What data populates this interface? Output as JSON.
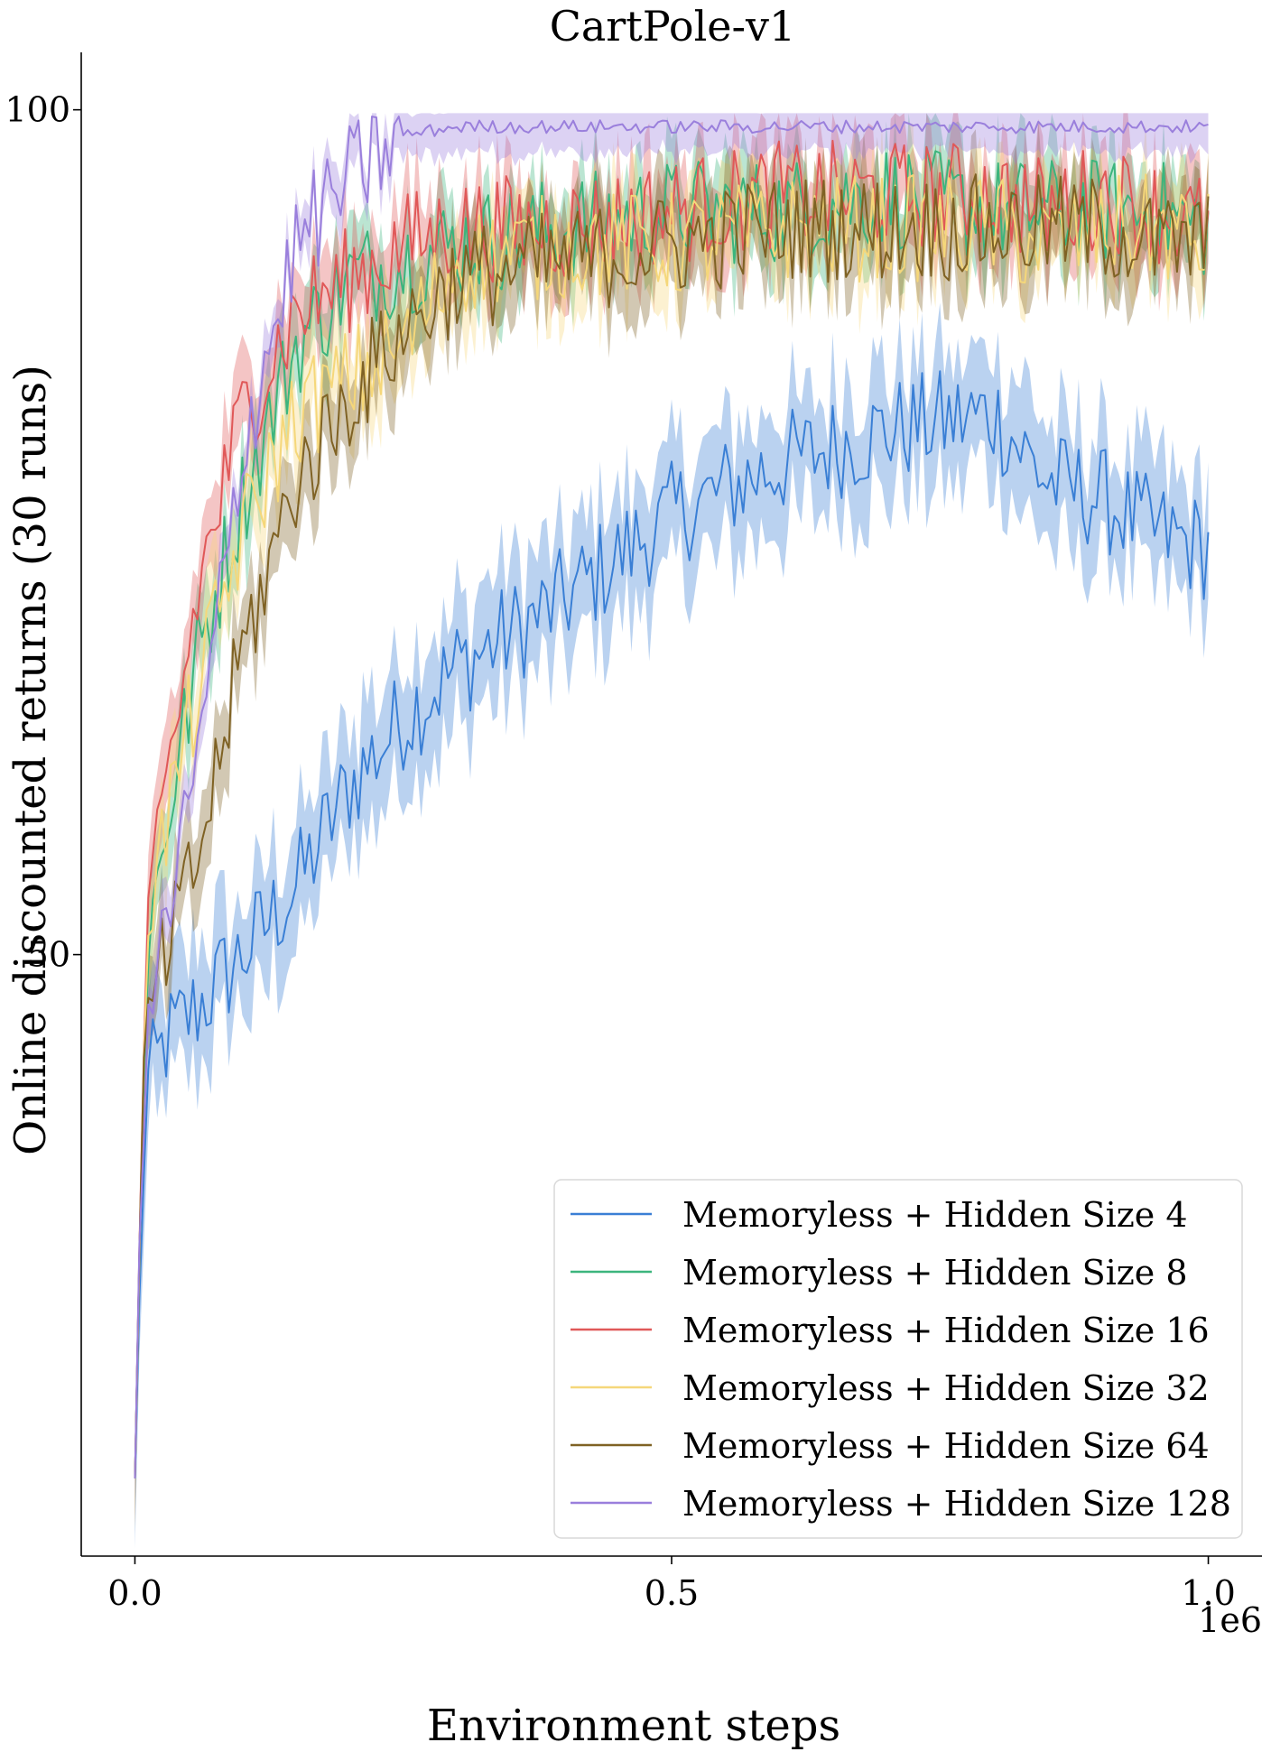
{
  "chart_data": {
    "type": "line",
    "title": "CartPole-v1",
    "xlabel": "Environment steps",
    "ylabel": "Online discounted returns (30 runs)",
    "x_offset_label": "1e6",
    "xlim": [
      -0.05,
      1.05
    ],
    "ylim": [
      14.4,
      103.4
    ],
    "xticks": [
      {
        "value": 0.0,
        "label": "0.0"
      },
      {
        "value": 0.5,
        "label": "0.5"
      },
      {
        "value": 1.0,
        "label": "1.0"
      }
    ],
    "yticks": [
      {
        "value": 50,
        "label": "50"
      },
      {
        "value": 100,
        "label": "100"
      }
    ],
    "grid": false,
    "legend_position": "lower-right",
    "x": [
      0.0,
      0.01,
      0.03,
      0.06,
      0.1,
      0.15,
      0.2,
      0.25,
      0.3,
      0.4,
      0.5,
      0.6,
      0.7,
      0.8,
      0.85,
      0.9,
      0.95,
      1.0
    ],
    "series": [
      {
        "name": "Memoryless + Hidden Size 4",
        "color": "#3a7fd5",
        "values": [
          19,
          42,
          45,
          47,
          50,
          54,
          60,
          64,
          67,
          71,
          76,
          79,
          81,
          82,
          78,
          77,
          75,
          74
        ],
        "band": 3.5
      },
      {
        "name": "Memoryless + Hidden Size 8",
        "color": "#3cb57d",
        "values": [
          19,
          50,
          58,
          68,
          77,
          86,
          90,
          91,
          92,
          93,
          94,
          94,
          95,
          94,
          94,
          94,
          94,
          93
        ],
        "band": 2.5
      },
      {
        "name": "Memoryless + Hidden Size 16",
        "color": "#e05858",
        "values": [
          19,
          50,
          60,
          72,
          82,
          88,
          90,
          92,
          93,
          93,
          94,
          95,
          95,
          95,
          94,
          95,
          94,
          93
        ],
        "band": 2.5
      },
      {
        "name": "Memoryless + Hidden Size 32",
        "color": "#f5d77a",
        "values": [
          19,
          52,
          58,
          66,
          75,
          82,
          84,
          86,
          91,
          92,
          92,
          93,
          93,
          93,
          92,
          93,
          93,
          92
        ],
        "band": 2.5
      },
      {
        "name": "Memoryless + Hidden Size 64",
        "color": "#7f6224",
        "values": [
          19,
          46,
          50,
          56,
          68,
          78,
          83,
          87,
          90,
          91,
          92,
          93,
          93,
          93,
          93,
          93,
          92,
          92
        ],
        "band": 2.5
      },
      {
        "name": "Memoryless + Hidden Size 128",
        "color": "#9a7fdc",
        "values": [
          19,
          45,
          52,
          62,
          80,
          92,
          96,
          98.5,
          99,
          99,
          99,
          99,
          99,
          99,
          99,
          99,
          99,
          99
        ],
        "band": 1.5
      }
    ]
  }
}
